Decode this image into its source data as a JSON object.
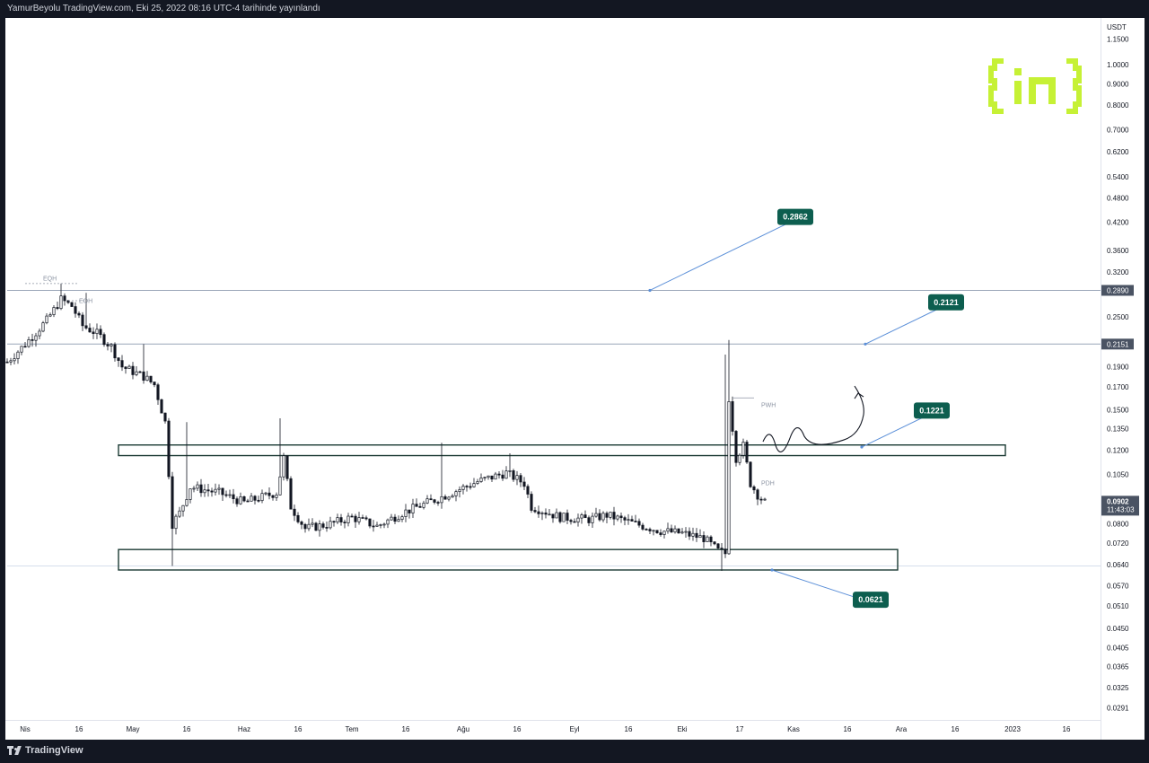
{
  "header": {
    "publish_info": "YamurBeyolu TradingView.com, Eki 25, 2022 08:16 UTC-4 tarihinde yayınlandı"
  },
  "footer": {
    "brand": "TradingView"
  },
  "logo": {
    "text": "[in]",
    "color": "#c6f135"
  },
  "colors": {
    "candle": "#131722",
    "zone_border": "#1b3a34",
    "callout_bg": "#0d5e4f",
    "callout_text": "#ffffff",
    "level_line": "#9aa6b8",
    "arrow_line": "#5b8fd8",
    "axis_text": "#131722",
    "current_price_bg": "#4a5363"
  },
  "chart_data": {
    "type": "candlestick",
    "title": "",
    "y_scale": "log",
    "ylim": [
      0.0275,
      1.28
    ],
    "currency_label": "USDT",
    "y_ticks": [
      "1.1500",
      "1.0000",
      "0.9000",
      "0.8000",
      "0.7000",
      "0.6200",
      "0.5400",
      "0.4800",
      "0.4200",
      "0.3600",
      "0.3200",
      "0.2500",
      "0.1900",
      "0.1700",
      "0.1500",
      "0.1350",
      "0.1200",
      "0.1050",
      "0.0800",
      "0.0720",
      "0.0640",
      "0.0570",
      "0.0510",
      "0.0450",
      "0.0405",
      "0.0365",
      "0.0325",
      "0.0291"
    ],
    "x_ticks": [
      {
        "label": "Nis",
        "date": "2022-04-01"
      },
      {
        "label": "16",
        "date": "2022-04-16"
      },
      {
        "label": "May",
        "date": "2022-05-01"
      },
      {
        "label": "16",
        "date": "2022-05-16"
      },
      {
        "label": "Haz",
        "date": "2022-06-01"
      },
      {
        "label": "16",
        "date": "2022-06-16"
      },
      {
        "label": "Tem",
        "date": "2022-07-01"
      },
      {
        "label": "16",
        "date": "2022-07-16"
      },
      {
        "label": "Ağu",
        "date": "2022-08-01"
      },
      {
        "label": "16",
        "date": "2022-08-16"
      },
      {
        "label": "Eyl",
        "date": "2022-09-01"
      },
      {
        "label": "16",
        "date": "2022-09-16"
      },
      {
        "label": "Eki",
        "date": "2022-10-01"
      },
      {
        "label": "17",
        "date": "2022-10-17"
      },
      {
        "label": "Kas",
        "date": "2022-11-01"
      },
      {
        "label": "16",
        "date": "2022-11-16"
      },
      {
        "label": "Ara",
        "date": "2022-12-01"
      },
      {
        "label": "16",
        "date": "2022-12-16"
      },
      {
        "label": "2023",
        "date": "2023-01-01"
      },
      {
        "label": "16",
        "date": "2023-01-16"
      }
    ],
    "x_range": [
      "2022-03-27",
      "2023-01-25"
    ],
    "path_anchors": [
      {
        "date": "2022-03-27",
        "price": 0.195
      },
      {
        "date": "2022-04-01",
        "price": 0.215
      },
      {
        "date": "2022-04-07",
        "price": 0.245
      },
      {
        "date": "2022-04-11",
        "price": 0.275
      },
      {
        "date": "2022-04-14",
        "price": 0.265
      },
      {
        "date": "2022-04-17",
        "price": 0.238
      },
      {
        "date": "2022-04-21",
        "price": 0.228
      },
      {
        "date": "2022-04-25",
        "price": 0.212
      },
      {
        "date": "2022-04-28",
        "price": 0.19
      },
      {
        "date": "2022-05-04",
        "price": 0.18
      },
      {
        "date": "2022-05-07",
        "price": 0.172
      },
      {
        "date": "2022-05-10",
        "price": 0.14
      },
      {
        "date": "2022-05-12",
        "price": 0.08
      },
      {
        "date": "2022-05-14",
        "price": 0.085
      },
      {
        "date": "2022-05-17",
        "price": 0.098
      },
      {
        "date": "2022-05-25",
        "price": 0.095
      },
      {
        "date": "2022-06-01",
        "price": 0.09
      },
      {
        "date": "2022-06-10",
        "price": 0.095
      },
      {
        "date": "2022-06-12",
        "price": 0.115
      },
      {
        "date": "2022-06-14",
        "price": 0.088
      },
      {
        "date": "2022-06-18",
        "price": 0.078
      },
      {
        "date": "2022-06-25",
        "price": 0.08
      },
      {
        "date": "2022-07-01",
        "price": 0.083
      },
      {
        "date": "2022-07-08",
        "price": 0.079
      },
      {
        "date": "2022-07-15",
        "price": 0.085
      },
      {
        "date": "2022-07-25",
        "price": 0.092
      },
      {
        "date": "2022-08-05",
        "price": 0.101
      },
      {
        "date": "2022-08-13",
        "price": 0.106
      },
      {
        "date": "2022-08-18",
        "price": 0.1
      },
      {
        "date": "2022-08-20",
        "price": 0.088
      },
      {
        "date": "2022-08-28",
        "price": 0.083
      },
      {
        "date": "2022-09-05",
        "price": 0.082
      },
      {
        "date": "2022-09-10",
        "price": 0.084
      },
      {
        "date": "2022-09-18",
        "price": 0.08
      },
      {
        "date": "2022-09-25",
        "price": 0.077
      },
      {
        "date": "2022-10-01",
        "price": 0.076
      },
      {
        "date": "2022-10-07",
        "price": 0.074
      },
      {
        "date": "2022-10-11",
        "price": 0.069
      },
      {
        "date": "2022-10-13",
        "price": 0.068
      },
      {
        "date": "2022-10-14",
        "price": 0.16
      },
      {
        "date": "2022-10-16",
        "price": 0.115
      },
      {
        "date": "2022-10-18",
        "price": 0.123
      },
      {
        "date": "2022-10-20",
        "price": 0.1
      },
      {
        "date": "2022-10-22",
        "price": 0.094
      },
      {
        "date": "2022-10-24",
        "price": 0.09
      }
    ],
    "notable_wicks": [
      {
        "date": "2022-04-11",
        "high": 0.3
      },
      {
        "date": "2022-04-18",
        "high": 0.285
      },
      {
        "date": "2022-05-04",
        "high": 0.215
      },
      {
        "date": "2022-05-12",
        "low": 0.0635
      },
      {
        "date": "2022-05-16",
        "high": 0.14
      },
      {
        "date": "2022-06-11",
        "high": 0.143
      },
      {
        "date": "2022-07-26",
        "high": 0.125
      },
      {
        "date": "2022-08-14",
        "high": 0.118
      },
      {
        "date": "2022-10-12",
        "low": 0.0618
      },
      {
        "date": "2022-10-13",
        "high": 0.203
      },
      {
        "date": "2022-10-14",
        "high": 0.22
      }
    ],
    "zones": [
      {
        "name": "resistance-zone",
        "low": 0.1165,
        "high": 0.1235,
        "from": "2022-04-27",
        "to": "2022-12-30"
      },
      {
        "name": "support-zone",
        "low": 0.0621,
        "high": 0.0695,
        "from": "2022-04-27",
        "to": "2022-11-30"
      }
    ],
    "level_lines": [
      {
        "price": 0.289,
        "label": "0.2890"
      },
      {
        "price": 0.2151,
        "label": "0.2151"
      },
      {
        "price": 0.0635,
        "label": ""
      }
    ],
    "callouts": [
      {
        "label": "0.2862",
        "value": 0.2862
      },
      {
        "label": "0.2121",
        "value": 0.2121
      },
      {
        "label": "0.1221",
        "value": 0.1221
      },
      {
        "label": "0.0621",
        "value": 0.0621
      }
    ],
    "markers": [
      "EQH",
      "EQH",
      "PWH",
      "PDH"
    ],
    "current_price": {
      "value": "0.0902",
      "countdown": "11:43:03"
    }
  }
}
